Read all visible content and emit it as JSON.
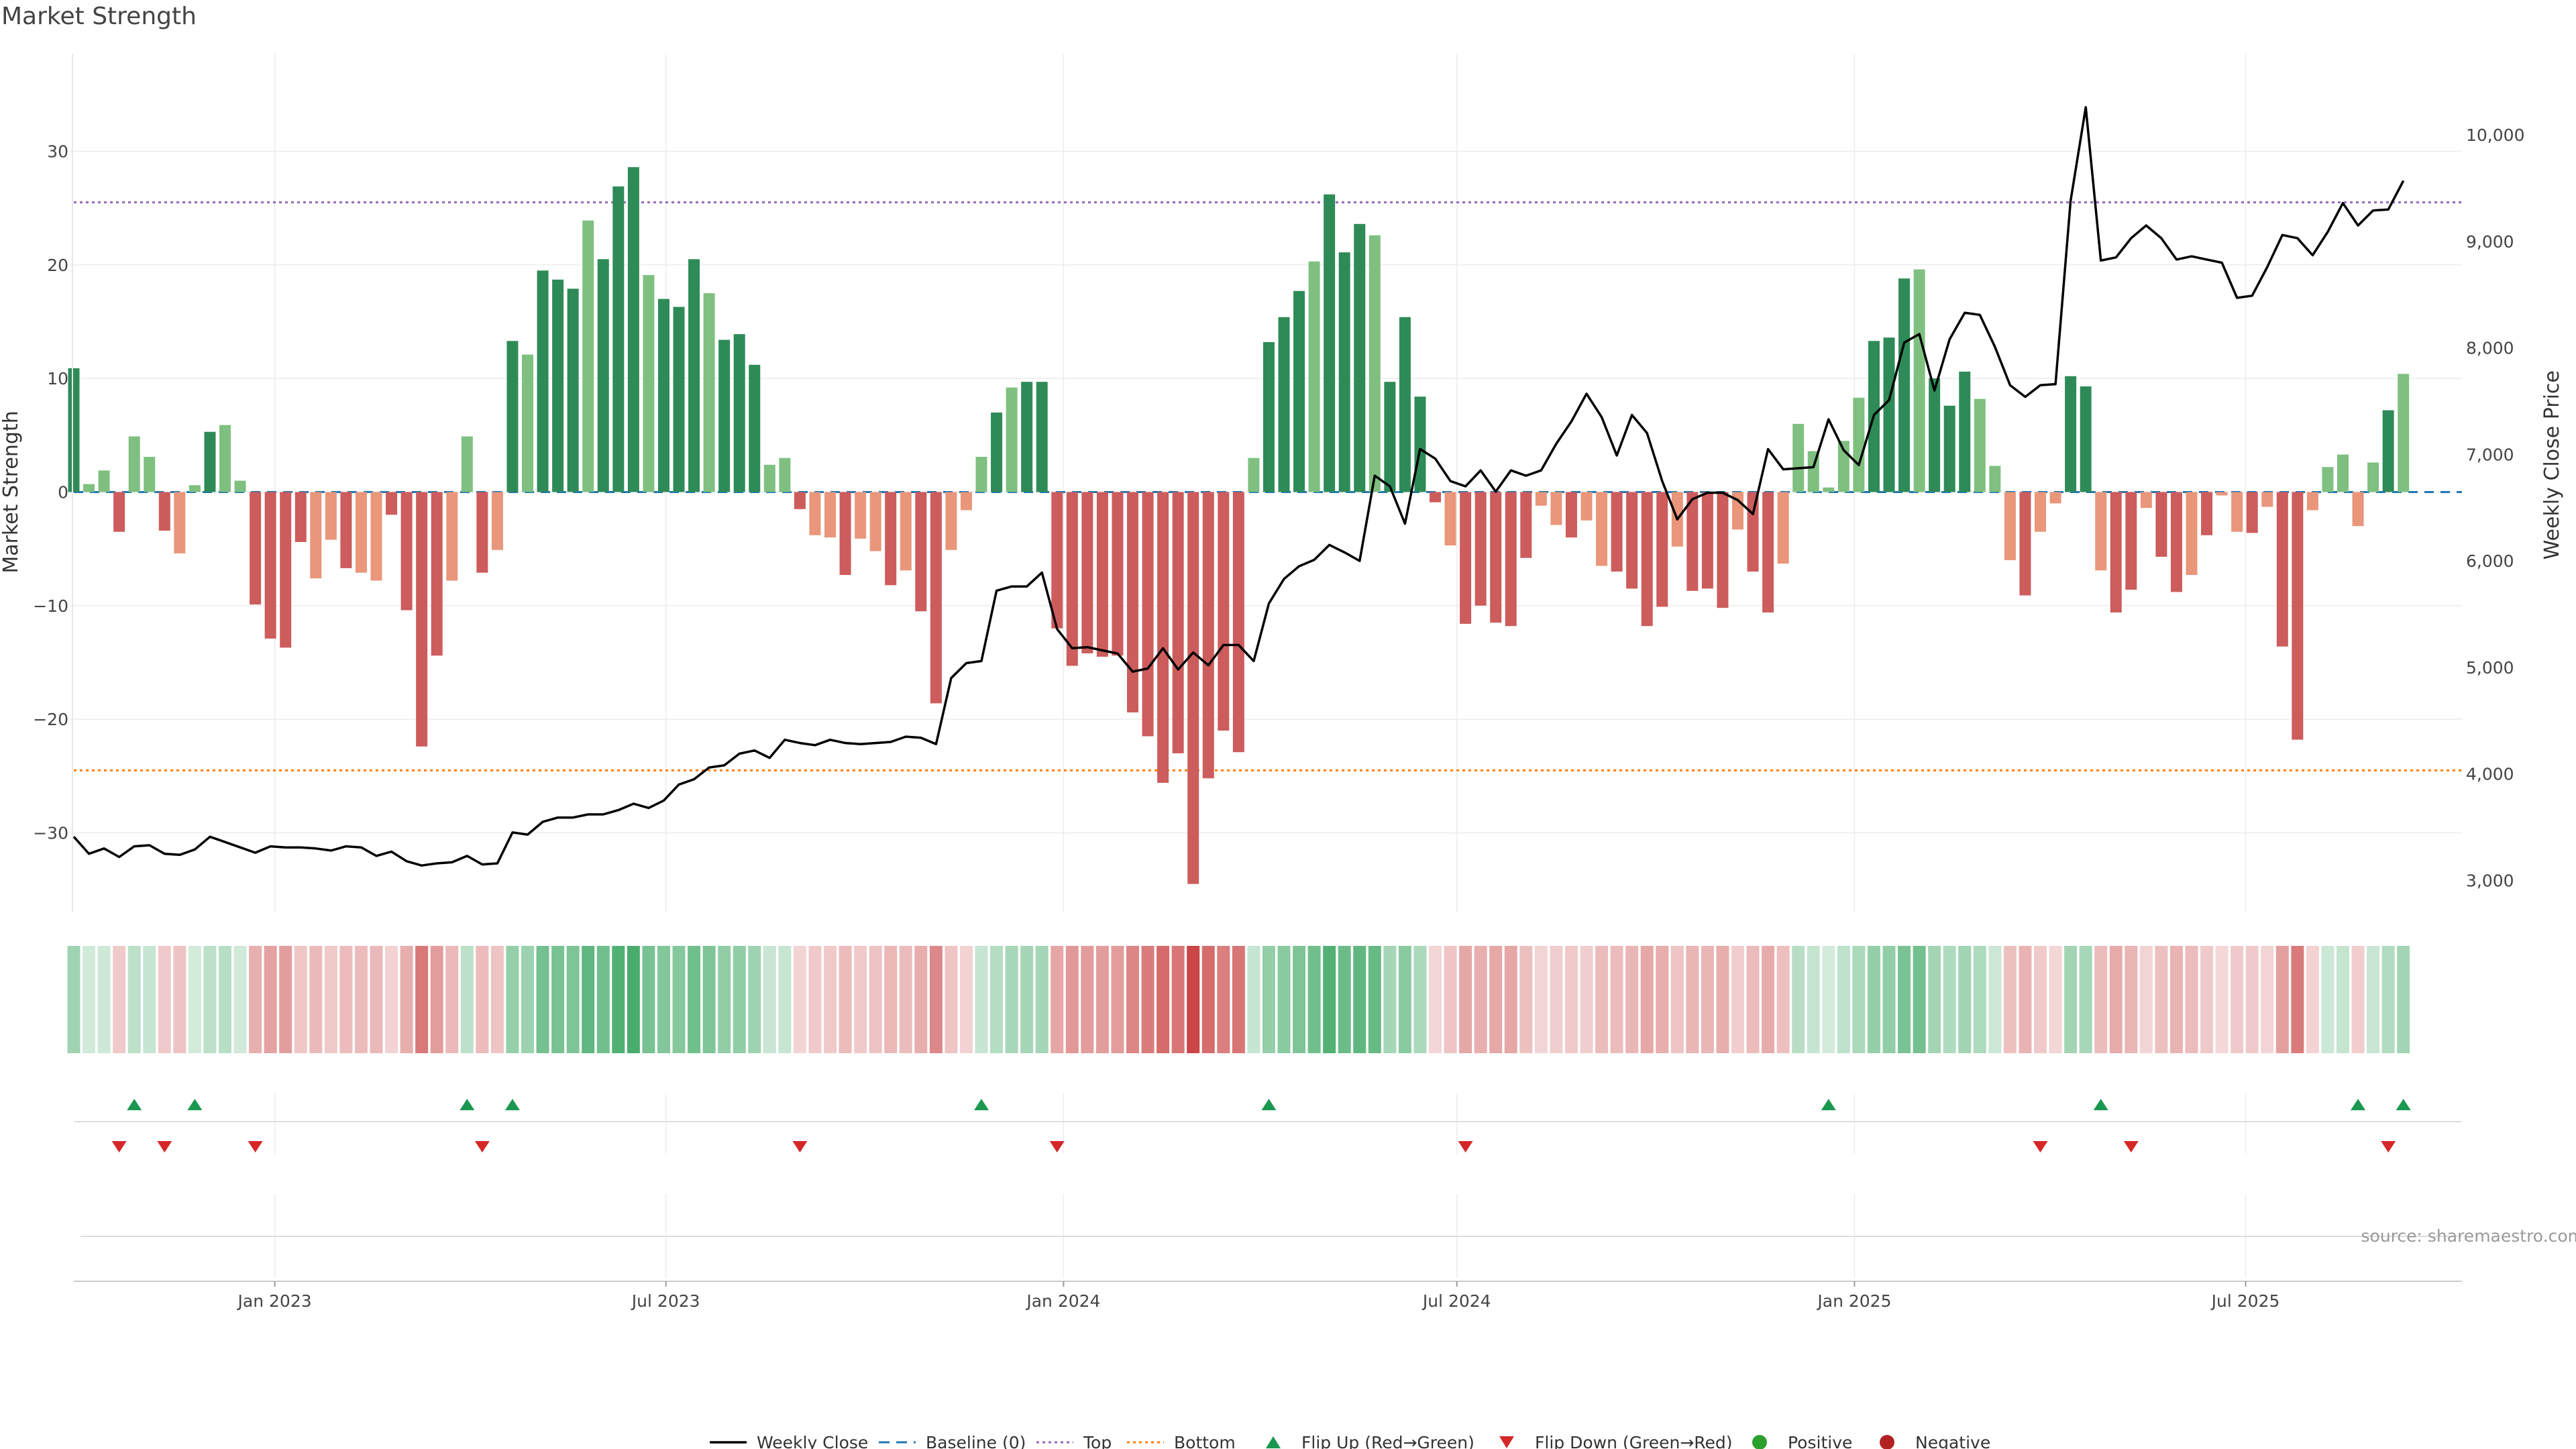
{
  "title": "Market Strength",
  "source": "source: sharemaestro.com",
  "colors": {
    "pos_strong": "#2e8b57",
    "pos_weak": "#7fc080",
    "neg_strong": "#cd5c5c",
    "neg_weak": "#e9967a",
    "close_line": "#000000",
    "baseline": "#1f77b4",
    "top": "#9467bd",
    "bottom": "#ff7f0e",
    "flip_up": "#1a9850",
    "flip_down": "#d62728",
    "positive": "#2ca02c",
    "negative": "#b22222",
    "grid": "#ececec"
  },
  "chart_data": {
    "type": "bar",
    "ylabel_left": "Market Strength",
    "ylabel_right": "Weekly Close Price",
    "ylim_left": [
      -37,
      38
    ],
    "ylim_right": [
      2700,
      10700
    ],
    "yticks_left": [
      30,
      20,
      10,
      0,
      -10,
      -20,
      -30
    ],
    "yticks_right": [
      10000,
      9000,
      8000,
      7000,
      6000,
      5000,
      4000,
      3000
    ],
    "yticks_right_labels": [
      "10,000",
      "9,000",
      "8,000",
      "7,000",
      "6,000",
      "5,000",
      "4,000",
      "3,000"
    ],
    "yticks_left_labels": [
      "30",
      "20",
      "10",
      "0",
      "−10",
      "−20",
      "−30"
    ],
    "x_start": "2022-09-30",
    "x_step_days": 7,
    "xticks": [
      {
        "date": "2023-01-01",
        "label": "Jan 2023"
      },
      {
        "date": "2023-07-01",
        "label": "Jul 2023"
      },
      {
        "date": "2024-01-01",
        "label": "Jan 2024"
      },
      {
        "date": "2024-07-01",
        "label": "Jul 2024"
      },
      {
        "date": "2025-01-01",
        "label": "Jan 2025"
      },
      {
        "date": "2025-07-01",
        "label": "Jul 2025"
      }
    ],
    "top_line": 25.5,
    "bottom_line": -24.5,
    "grid": true,
    "legend_position": "bottom-center",
    "strength": [
      10.9,
      0.7,
      1.9,
      -3.5,
      4.9,
      3.1,
      -3.4,
      -5.4,
      0.6,
      5.3,
      5.9,
      1.0,
      -9.9,
      -12.9,
      -13.7,
      -4.4,
      -7.6,
      -4.2,
      -6.7,
      -7.1,
      -7.8,
      -2.0,
      -10.4,
      -22.4,
      -14.4,
      -7.8,
      4.9,
      -7.1,
      -5.1,
      13.3,
      12.1,
      19.5,
      18.7,
      17.9,
      23.9,
      20.5,
      26.9,
      28.6,
      19.1,
      17.0,
      16.3,
      20.5,
      17.5,
      13.4,
      13.9,
      11.2,
      2.4,
      3.0,
      -1.5,
      -3.8,
      -4.0,
      -7.3,
      -4.1,
      -5.2,
      -8.2,
      -6.9,
      -10.5,
      -18.6,
      -5.1,
      -1.6,
      3.1,
      7.0,
      9.2,
      9.7,
      9.7,
      -12.0,
      -15.3,
      -14.2,
      -14.5,
      -14.4,
      -19.4,
      -21.5,
      -25.6,
      -23.0,
      -34.5,
      -25.2,
      -21.0,
      -22.9,
      3.0,
      13.2,
      15.4,
      17.7,
      20.3,
      26.2,
      21.1,
      23.6,
      22.6,
      9.7,
      15.4,
      8.4,
      -0.9,
      -4.7,
      -11.6,
      -10.0,
      -11.5,
      -11.8,
      -5.8,
      -1.2,
      -2.9,
      -4.0,
      -2.5,
      -6.5,
      -7.0,
      -8.5,
      -11.8,
      -10.1,
      -4.8,
      -8.7,
      -8.5,
      -10.2,
      -3.3,
      -7.0,
      -10.6,
      -6.3,
      6.0,
      3.6,
      0.4,
      4.5,
      8.3,
      13.3,
      13.6,
      18.8,
      19.6,
      10.0,
      7.6,
      10.6,
      8.2,
      2.3,
      -6.0,
      -9.1,
      -3.5,
      -1.0,
      10.2,
      9.3,
      -6.9,
      -10.6,
      -8.6,
      -1.4,
      -5.7,
      -8.8,
      -7.3,
      -3.8,
      -0.3,
      -3.5,
      -3.6,
      -1.3,
      -13.6,
      -21.8,
      -1.6,
      2.2,
      3.3,
      -3.0,
      2.6,
      7.2,
      10.4
    ],
    "weekly_close": [
      3410,
      3250,
      3300,
      3220,
      3320,
      3330,
      3250,
      3240,
      3290,
      3410,
      3360,
      3310,
      3260,
      3320,
      3310,
      3310,
      3300,
      3280,
      3320,
      3310,
      3230,
      3270,
      3180,
      3140,
      3160,
      3170,
      3230,
      3150,
      3160,
      3450,
      3430,
      3550,
      3590,
      3590,
      3620,
      3620,
      3660,
      3720,
      3680,
      3750,
      3900,
      3950,
      4060,
      4080,
      4190,
      4220,
      4150,
      4320,
      4290,
      4270,
      4320,
      4290,
      4280,
      4290,
      4300,
      4350,
      4340,
      4280,
      4900,
      5040,
      5060,
      5720,
      5760,
      5760,
      5890,
      5360,
      5180,
      5190,
      5160,
      5130,
      4960,
      4990,
      5180,
      4980,
      5140,
      5020,
      5210,
      5210,
      5060,
      5600,
      5830,
      5950,
      6010,
      6150,
      6080,
      6000,
      6800,
      6700,
      6350,
      7050,
      6960,
      6750,
      6700,
      6850,
      6650,
      6850,
      6800,
      6850,
      7100,
      7310,
      7570,
      7350,
      6990,
      7370,
      7200,
      6750,
      6390,
      6580,
      6640,
      6640,
      6570,
      6440,
      7050,
      6860,
      6870,
      6880,
      7330,
      7040,
      6900,
      7370,
      7510,
      8050,
      8130,
      7600,
      8080,
      8330,
      8310,
      8010,
      7650,
      7540,
      7650,
      7660,
      9380,
      10260,
      8820,
      8850,
      9030,
      9150,
      9030,
      8830,
      8860,
      8830,
      8800,
      8470,
      8490,
      8760,
      9060,
      9030,
      8870,
      9090,
      9360,
      9150,
      9290,
      9300,
      9570
    ],
    "flip_up_idx": [
      4,
      8,
      26,
      29,
      60,
      79,
      116,
      134,
      151,
      154
    ],
    "flip_down_idx": [
      3,
      6,
      12,
      27,
      48,
      65,
      92,
      130,
      136,
      153
    ],
    "legend": [
      {
        "key": "weekly_close",
        "label": "Weekly Close"
      },
      {
        "key": "baseline",
        "label": "Baseline (0)"
      },
      {
        "key": "top",
        "label": "Top"
      },
      {
        "key": "bottom",
        "label": "Bottom"
      },
      {
        "key": "flip_up",
        "label": "Flip Up (Red→Green)"
      },
      {
        "key": "flip_down",
        "label": "Flip Down (Green→Red)"
      },
      {
        "key": "positive",
        "label": "Positive"
      },
      {
        "key": "negative",
        "label": "Negative"
      }
    ]
  }
}
